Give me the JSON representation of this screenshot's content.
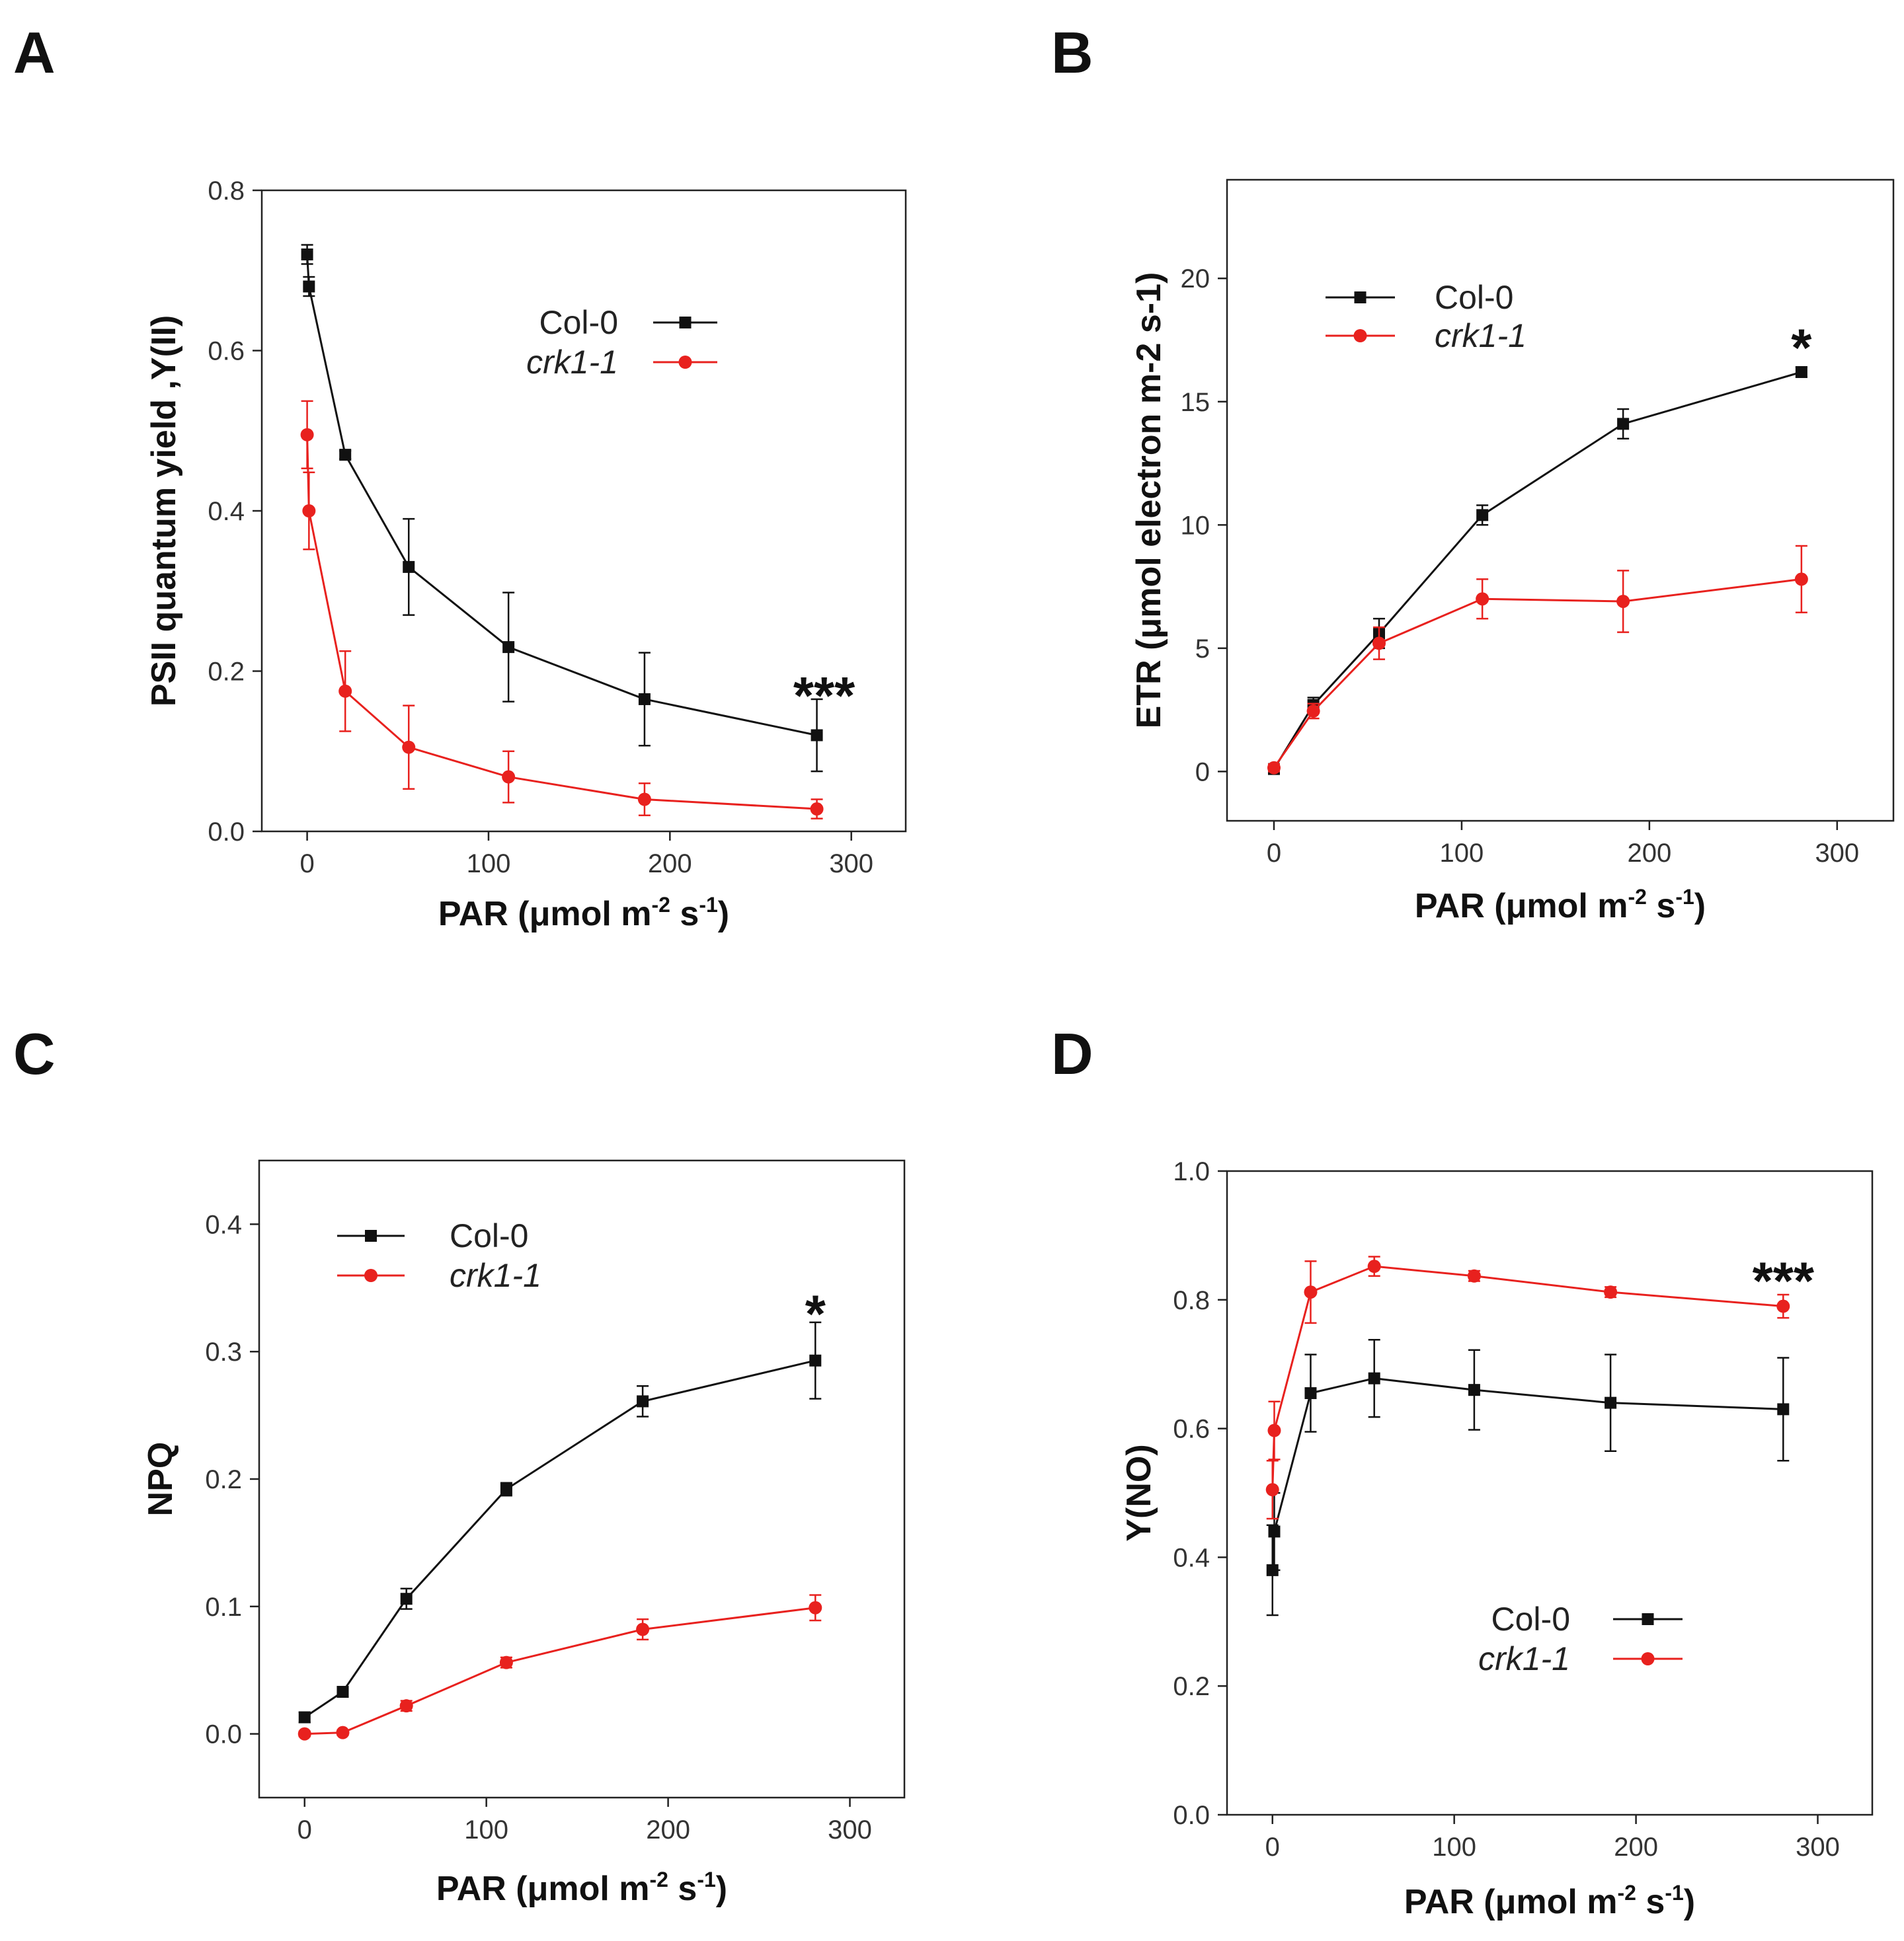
{
  "colors": {
    "col0": "#111111",
    "crk1": "#e8211e",
    "axis": "#222222"
  },
  "chart_data": [
    {
      "panel": "A",
      "type": "line",
      "ylabel": "PSII quantum yield ,Y(II)",
      "xlabel": "PAR (μmol m-2 s-1)",
      "xlabel_parts": {
        "main": "PAR (μmol m",
        "exp1": "-2",
        "mid": " s",
        "exp2": "-1",
        "end": ")"
      },
      "xlim": [
        -25,
        330
      ],
      "ylim": [
        0,
        0.8
      ],
      "xticks": [
        0,
        100,
        200,
        300
      ],
      "xtick_labels": [
        "0",
        "100",
        "200",
        "300"
      ],
      "yticks": [
        0,
        0.2,
        0.4,
        0.6,
        0.8
      ],
      "ytick_labels": [
        "0.0",
        "0.2",
        "0.4",
        "0.6",
        "0.8"
      ],
      "legend": {
        "position": "top-right",
        "entries": [
          "Col-0",
          "crk1-1"
        ]
      },
      "annotation": {
        "text": "***",
        "x": 285,
        "y": 0.17
      },
      "series": [
        {
          "name": "Col-0",
          "marker": "square",
          "x": [
            0,
            1,
            21,
            56,
            111,
            186,
            281
          ],
          "y": [
            0.72,
            0.68,
            0.47,
            0.33,
            0.23,
            0.165,
            0.12
          ],
          "err": [
            0.012,
            0.012,
            0.005,
            0.06,
            0.068,
            0.058,
            0.045
          ]
        },
        {
          "name": "crk1-1",
          "marker": "circle",
          "x": [
            0,
            1,
            21,
            56,
            111,
            186,
            281
          ],
          "y": [
            0.495,
            0.4,
            0.175,
            0.105,
            0.068,
            0.04,
            0.028
          ],
          "err": [
            0.042,
            0.048,
            0.05,
            0.052,
            0.032,
            0.02,
            0.012
          ]
        }
      ]
    },
    {
      "panel": "B",
      "type": "line",
      "ylabel": "ETR (μmol electron m-2 s-1)",
      "xlabel": "PAR (μmol m-2 s-1)",
      "xlabel_parts": {
        "main": "PAR (μmol m",
        "exp1": "-2",
        "mid": " s",
        "exp2": "-1",
        "end": ")"
      },
      "xlim": [
        -25,
        330
      ],
      "ylim": [
        -2,
        24
      ],
      "xticks": [
        0,
        100,
        200,
        300
      ],
      "xtick_labels": [
        "0",
        "100",
        "200",
        "300"
      ],
      "yticks": [
        0,
        5,
        10,
        15,
        20
      ],
      "ytick_labels": [
        "0",
        "5",
        "10",
        "15",
        "20"
      ],
      "legend": {
        "position": "top-left",
        "entries": [
          "Col-0",
          "crk1-1"
        ]
      },
      "annotation": {
        "text": "*",
        "x": 281,
        "y": 17.2
      },
      "series": [
        {
          "name": "Col-0",
          "marker": "square",
          "x": [
            0,
            21,
            56,
            111,
            186,
            281
          ],
          "y": [
            0.1,
            2.7,
            5.6,
            10.4,
            14.1,
            16.2
          ],
          "err": [
            0.15,
            0.3,
            0.6,
            0.4,
            0.6,
            0.2
          ]
        },
        {
          "name": "crk1-1",
          "marker": "circle",
          "x": [
            0,
            21,
            56,
            111,
            186,
            281
          ],
          "y": [
            0.15,
            2.45,
            5.2,
            7.0,
            6.9,
            7.8
          ],
          "err": [
            0.15,
            0.3,
            0.65,
            0.8,
            1.25,
            1.35
          ]
        }
      ]
    },
    {
      "panel": "C",
      "type": "line",
      "ylabel": "NPQ",
      "xlabel": "PAR (μmol m-2 s-1)",
      "xlabel_parts": {
        "main": "PAR (μmol m",
        "exp1": "-2",
        "mid": " s",
        "exp2": "-1",
        "end": ")"
      },
      "xlim": [
        -25,
        330
      ],
      "ylim": [
        -0.05,
        0.45
      ],
      "xticks": [
        0,
        100,
        200,
        300
      ],
      "xtick_labels": [
        "0",
        "100",
        "200",
        "300"
      ],
      "yticks": [
        0,
        0.1,
        0.2,
        0.3,
        0.4
      ],
      "ytick_labels": [
        "0.0",
        "0.1",
        "0.2",
        "0.3",
        "0.4"
      ],
      "legend": {
        "position": "top-left",
        "entries": [
          "Col-0",
          "crk1-1"
        ]
      },
      "annotation": {
        "text": "*",
        "x": 281,
        "y": 0.33
      },
      "series": [
        {
          "name": "Col-0",
          "marker": "square",
          "x": [
            0,
            21,
            56,
            111,
            186,
            281
          ],
          "y": [
            0.013,
            0.033,
            0.106,
            0.192,
            0.261,
            0.293
          ],
          "err": [
            0.004,
            0.004,
            0.008,
            0.005,
            0.012,
            0.03
          ]
        },
        {
          "name": "crk1-1",
          "marker": "circle",
          "x": [
            0,
            21,
            56,
            111,
            186,
            281
          ],
          "y": [
            0.0,
            0.001,
            0.022,
            0.056,
            0.082,
            0.099
          ],
          "err": [
            0.002,
            0.002,
            0.004,
            0.004,
            0.008,
            0.01
          ]
        }
      ]
    },
    {
      "panel": "D",
      "type": "line",
      "ylabel": "Y(NO)",
      "xlabel": "PAR (μmol m-2 s-1)",
      "xlabel_parts": {
        "main": "PAR (μmol m",
        "exp1": "-2",
        "mid": " s",
        "exp2": "-1",
        "end": ")"
      },
      "xlim": [
        -25,
        330
      ],
      "ylim": [
        0,
        1.0
      ],
      "xticks": [
        0,
        100,
        200,
        300
      ],
      "xtick_labels": [
        "0",
        "100",
        "200",
        "300"
      ],
      "yticks": [
        0,
        0.2,
        0.4,
        0.6,
        0.8,
        1.0
      ],
      "ytick_labels": [
        "0.0",
        "0.2",
        "0.4",
        "0.6",
        "0.8",
        "1.0"
      ],
      "legend": {
        "position": "bottom-right",
        "entries": [
          "Col-0",
          "crk1-1"
        ]
      },
      "annotation": {
        "text": "***",
        "x": 281,
        "y": 0.83
      },
      "series": [
        {
          "name": "Col-0",
          "marker": "square",
          "x": [
            0,
            1,
            21,
            56,
            111,
            186,
            281
          ],
          "y": [
            0.38,
            0.44,
            0.655,
            0.678,
            0.66,
            0.64,
            0.63
          ],
          "err": [
            0.07,
            0.06,
            0.06,
            0.06,
            0.062,
            0.075,
            0.08
          ]
        },
        {
          "name": "crk1-1",
          "marker": "circle",
          "x": [
            0,
            1,
            21,
            56,
            111,
            186,
            281
          ],
          "y": [
            0.505,
            0.597,
            0.812,
            0.852,
            0.837,
            0.812,
            0.79
          ],
          "err": [
            0.045,
            0.045,
            0.048,
            0.015,
            0.008,
            0.008,
            0.018
          ]
        }
      ]
    }
  ]
}
